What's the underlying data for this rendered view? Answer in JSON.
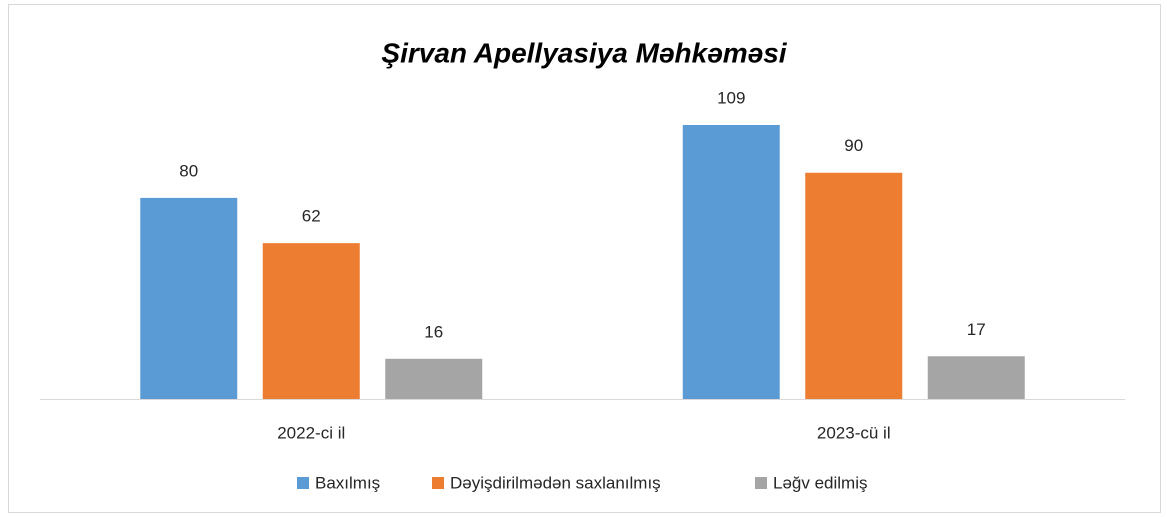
{
  "chart_data": {
    "type": "bar",
    "title": "Şirvan Apellyasiya Məhkəməsi",
    "categories": [
      "2022-ci il",
      "2023-cü il"
    ],
    "series": [
      {
        "name": "Baxılmış",
        "color": "#5b9bd5",
        "values": [
          80,
          109
        ]
      },
      {
        "name": "Dəyişdirilmədən saxlanılmış",
        "color": "#ed7d31",
        "values": [
          62,
          90
        ]
      },
      {
        "name": "Ləğv edilmiş",
        "color": "#a5a5a5",
        "values": [
          16,
          17
        ]
      }
    ],
    "legend": "bottom"
  }
}
